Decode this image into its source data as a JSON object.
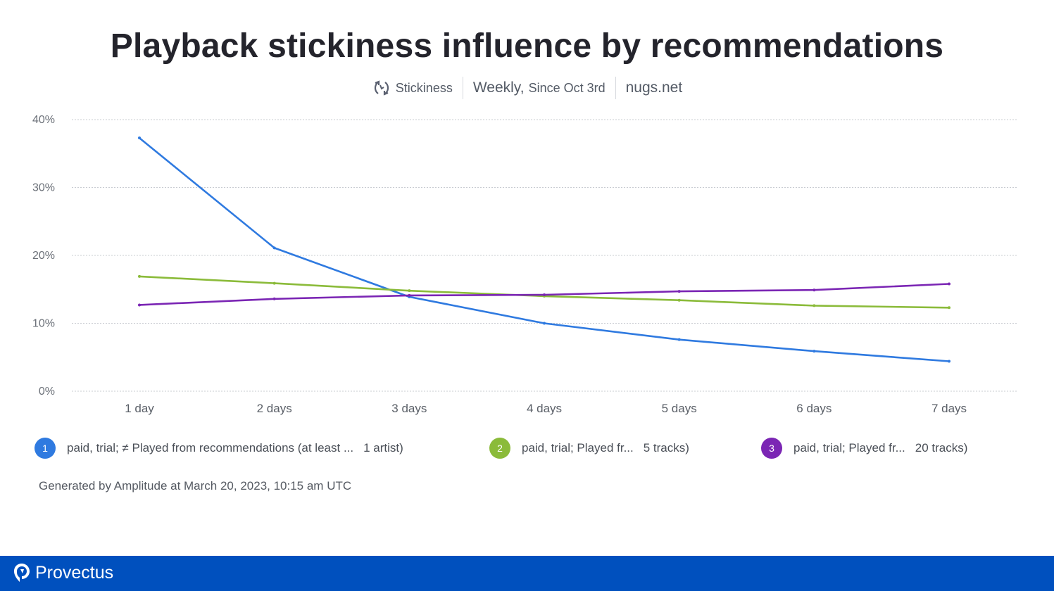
{
  "header": {
    "title": "Playback stickiness influence by recommendations",
    "metric": "Stickiness",
    "period": "Weekly,",
    "since": "Since Oct 3rd",
    "project": "nugs.net"
  },
  "chart_data": {
    "type": "line",
    "categories": [
      "1 day",
      "2 days",
      "3 days",
      "4 days",
      "5 days",
      "6 days",
      "7 days"
    ],
    "ylim": [
      0,
      40
    ],
    "yticks": [
      "0%",
      "10%",
      "20%",
      "30%",
      "40%"
    ],
    "grid": true,
    "legend_position": "bottom",
    "series": [
      {
        "name": "paid, trial; ≠ Played from recommendations (at least ...  1 artist)",
        "color": "#2f7ae0",
        "values": [
          37.3,
          21.1,
          13.9,
          10.0,
          7.6,
          5.9,
          4.4
        ]
      },
      {
        "name": "paid, trial; Played fr...  5 tracks)",
        "color": "#8bbb3a",
        "values": [
          16.9,
          15.9,
          14.8,
          14.0,
          13.4,
          12.6,
          12.3
        ]
      },
      {
        "name": "paid, trial; Played fr...  20 tracks)",
        "color": "#7b26b4",
        "values": [
          12.7,
          13.6,
          14.1,
          14.2,
          14.7,
          14.9,
          15.8
        ]
      }
    ]
  },
  "legend": [
    {
      "num": "1",
      "label_a": "paid, trial; ≠ Played from recommendations (at least ...",
      "label_b": "1 artist)",
      "color": "#2f7ae0"
    },
    {
      "num": "2",
      "label_a": "paid, trial; Played fr...",
      "label_b": "5 tracks)",
      "color": "#8bbb3a"
    },
    {
      "num": "3",
      "label_a": "paid, trial; Played fr...",
      "label_b": "20 tracks)",
      "color": "#7b26b4"
    }
  ],
  "footer_note": "Generated by Amplitude at March 20, 2023, 10:15 am UTC",
  "brand": {
    "name": "Provectus",
    "background": "#0050be"
  }
}
